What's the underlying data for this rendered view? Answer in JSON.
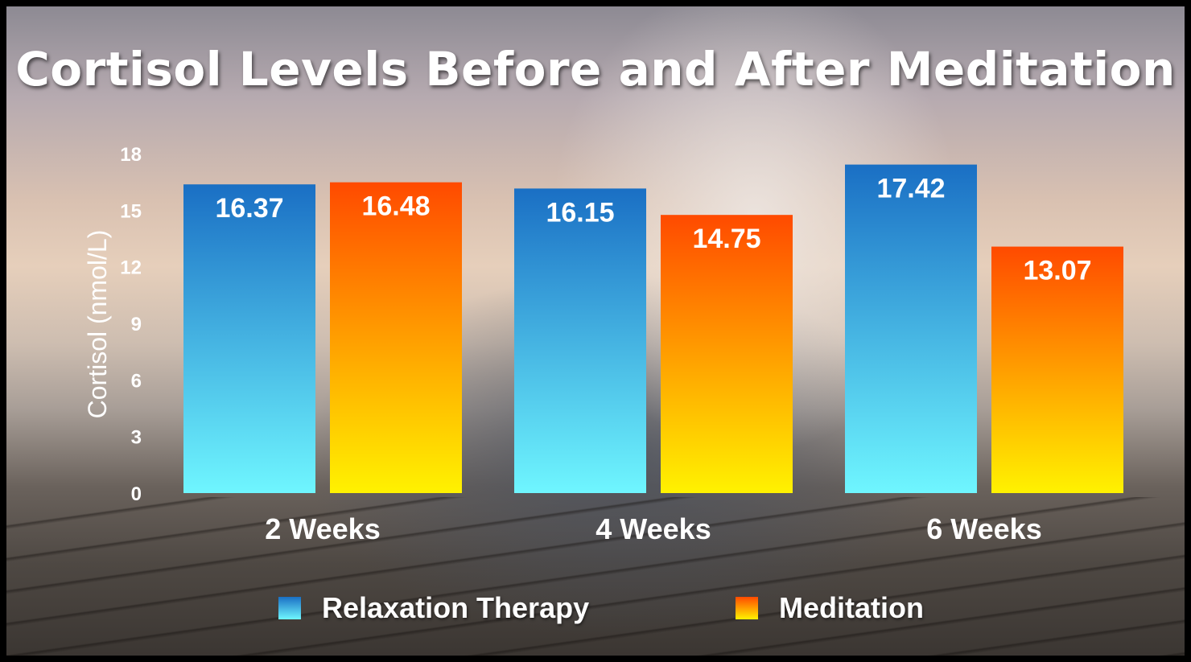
{
  "title": "Cortisol Levels Before and After Meditation",
  "chart_data": {
    "type": "bar",
    "title": "Cortisol Levels Before and After Meditation",
    "xlabel": "",
    "ylabel": "Cortisol (nmol/L)",
    "ylim": [
      0,
      18
    ],
    "yticks": [
      0,
      3,
      6,
      9,
      12,
      15,
      18
    ],
    "categories": [
      "2 Weeks",
      "4 Weeks",
      "6 Weeks"
    ],
    "series": [
      {
        "name": "Relaxation Therapy",
        "values": [
          16.37,
          16.15,
          17.42
        ],
        "color_top": "#1a6fc4",
        "color_bottom": "#6ff6ff"
      },
      {
        "name": "Meditation",
        "values": [
          16.48,
          14.75,
          13.07
        ],
        "color_top": "#ff4a00",
        "color_bottom": "#fff200"
      }
    ],
    "grid": false,
    "legend_position": "bottom"
  }
}
